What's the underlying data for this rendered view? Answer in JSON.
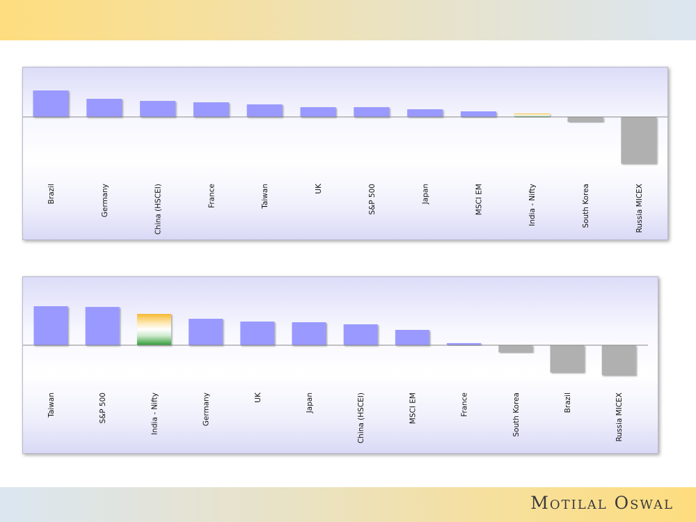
{
  "brand": {
    "name": "Motilal Oswal"
  },
  "colors": {
    "positive": "#9999ff",
    "negative": "#b0b0b0",
    "india_top": "#f7b930",
    "india_mid": "#ffffff",
    "india_bottom": "#2e9b35",
    "baseline": "#888888"
  },
  "chart_data": [
    {
      "type": "bar",
      "categories": [
        "Brazil",
        "Germany",
        "China (HSCEI)",
        "France",
        "Taiwan",
        "UK",
        "S&P 500",
        "Japan",
        "MSCI EM",
        "India - Nifty",
        "South Korea",
        "Russia MICEX"
      ],
      "values": [
        38,
        26,
        23,
        21,
        18,
        14,
        14,
        11,
        8,
        5,
        -7,
        -67
      ],
      "highlight": "India - Nifty",
      "xlabel": "",
      "ylabel": "",
      "ylim": [
        -67,
        38
      ],
      "grid": false,
      "legend": "none"
    },
    {
      "type": "bar",
      "categories": [
        "Taiwan",
        "S&P 500",
        "India - Nifty",
        "Germany",
        "UK",
        "Japan",
        "China (HSCEI)",
        "MSCI EM",
        "France",
        "South Korea",
        "Brazil",
        "Russia MICEX"
      ],
      "values": [
        56,
        55,
        45,
        38,
        34,
        33,
        30,
        22,
        3,
        -10,
        -39,
        -43
      ],
      "highlight": "India - Nifty",
      "xlabel": "",
      "ylabel": "",
      "ylim": [
        -43,
        56
      ],
      "grid": false,
      "legend": "none"
    }
  ]
}
